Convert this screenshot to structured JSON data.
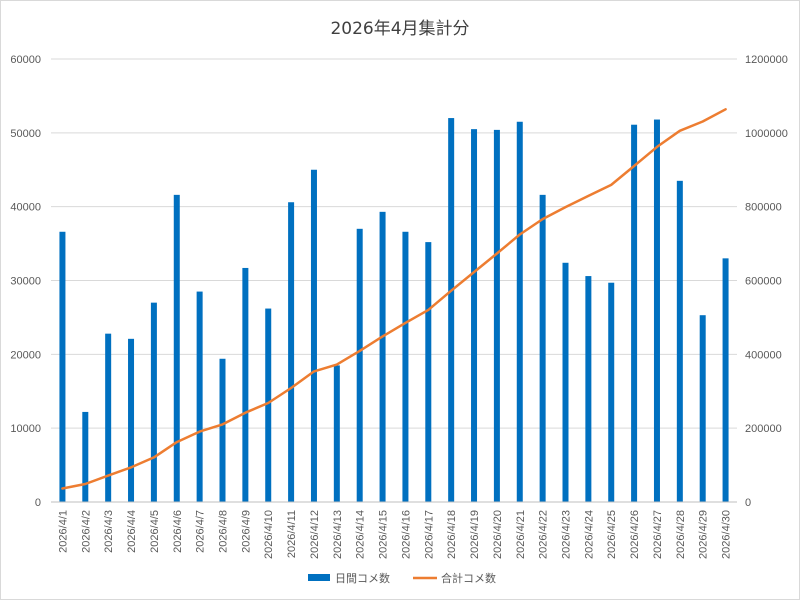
{
  "chart_data": {
    "type": "bar+line",
    "title": "2026年4月集計分",
    "categories": [
      "2026/4/1",
      "2026/4/2",
      "2026/4/3",
      "2026/4/4",
      "2026/4/5",
      "2026/4/6",
      "2026/4/7",
      "2026/4/8",
      "2026/4/9",
      "2026/4/10",
      "2026/4/11",
      "2026/4/12",
      "2026/4/13",
      "2026/4/14",
      "2026/4/15",
      "2026/4/16",
      "2026/4/17",
      "2026/4/18",
      "2026/4/19",
      "2026/4/20",
      "2026/4/21",
      "2026/4/22",
      "2026/4/23",
      "2026/4/24",
      "2026/4/25",
      "2026/4/26",
      "2026/4/27",
      "2026/4/28",
      "2026/4/29",
      "2026/4/30"
    ],
    "series": [
      {
        "name": "日間コメ数",
        "type": "bar",
        "axis": "left",
        "color": "#0070c0",
        "values": [
          36600,
          12200,
          22800,
          22100,
          27000,
          41600,
          28500,
          19400,
          31700,
          26200,
          40600,
          45000,
          18500,
          37000,
          39300,
          36600,
          35200,
          52000,
          50500,
          50400,
          51500,
          41600,
          32400,
          30600,
          29700,
          51100,
          51800,
          43500,
          25300,
          33000
        ]
      },
      {
        "name": "合計コメ数",
        "type": "line",
        "axis": "right",
        "color": "#ed7d31",
        "values": [
          36600,
          48800,
          71600,
          93700,
          120700,
          162300,
          190800,
          210200,
          241900,
          268100,
          308700,
          353700,
          372200,
          409200,
          448500,
          485100,
          520300,
          572300,
          622800,
          673200,
          724700,
          766300,
          798700,
          829300,
          859000,
          910100,
          961900,
          1005400,
          1030700,
          1063700
        ]
      }
    ],
    "y_left": {
      "min": 0,
      "max": 60000,
      "ticks": [
        0,
        10000,
        20000,
        30000,
        40000,
        50000,
        60000
      ]
    },
    "y_right": {
      "min": 0,
      "max": 1200000,
      "ticks": [
        0,
        200000,
        400000,
        600000,
        800000,
        1000000,
        1200000
      ]
    },
    "grid": true,
    "legend": "bottom"
  }
}
